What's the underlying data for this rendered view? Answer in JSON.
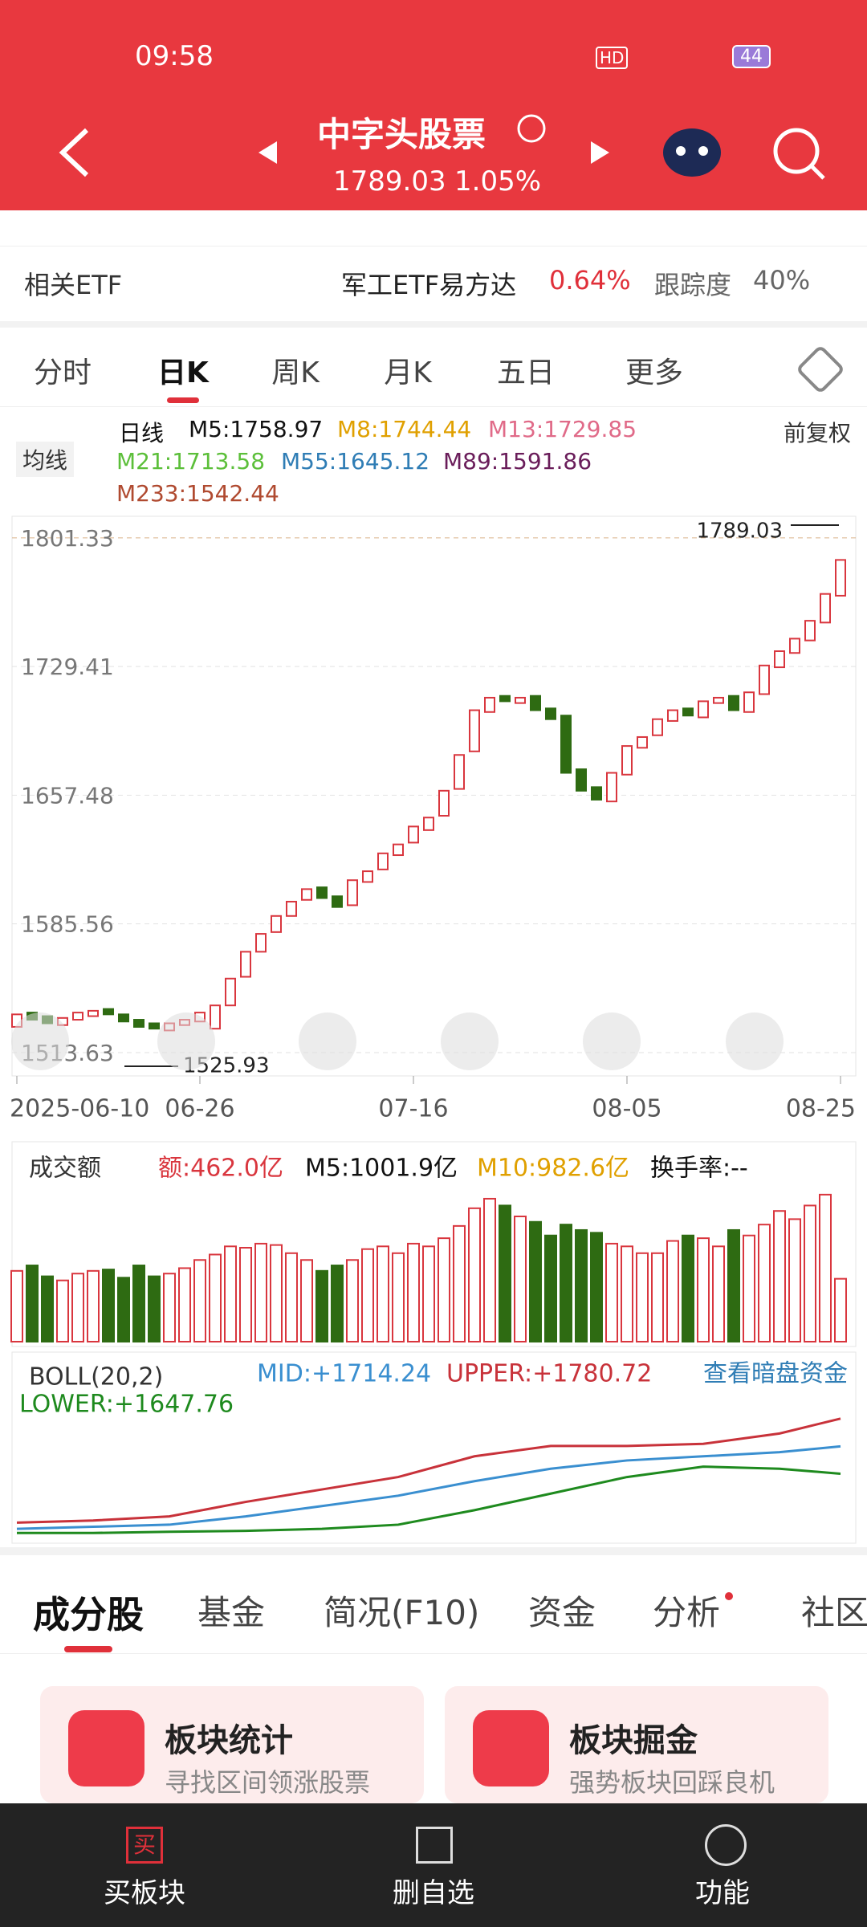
{
  "status": {
    "time": "09:58",
    "hd": "HD",
    "battery": "44"
  },
  "header": {
    "title": "中字头股票",
    "price": "1789.03",
    "change": "1.05%"
  },
  "etf": {
    "label": "相关ETF",
    "name": "军工ETF易方达",
    "change": "0.64%",
    "track_label": "跟踪度",
    "track": "40%"
  },
  "tabs": [
    "分时",
    "日K",
    "周K",
    "月K",
    "五日",
    "更多"
  ],
  "ma": {
    "selector": "均线",
    "period": "日线",
    "adjust": "前复权",
    "items": [
      {
        "text": "M5:1758.97",
        "color": "#111111"
      },
      {
        "text": "M8:1744.44",
        "color": "#e0a000"
      },
      {
        "text": "M13:1729.85",
        "color": "#e06a88"
      },
      {
        "text": "M21:1713.58",
        "color": "#5cbf3a"
      },
      {
        "text": "M55:1645.12",
        "color": "#2f7db5"
      },
      {
        "text": "M89:1591.86",
        "color": "#6a1d5a"
      },
      {
        "text": "M233:1542.44",
        "color": "#b04a30"
      }
    ]
  },
  "chart_data": [
    {
      "type": "candlestick",
      "categories": [
        "2025-06-10",
        null,
        null,
        null,
        null,
        null,
        null,
        null,
        null,
        null,
        null,
        null,
        "06-26",
        null,
        null,
        null,
        null,
        null,
        null,
        null,
        null,
        null,
        null,
        null,
        null,
        null,
        "07-16",
        null,
        null,
        null,
        null,
        null,
        null,
        null,
        null,
        null,
        null,
        null,
        null,
        null,
        "08-05",
        null,
        null,
        null,
        null,
        null,
        null,
        null,
        null,
        null,
        null,
        null,
        null,
        null,
        "08-25"
      ],
      "open": [
        1528,
        1536,
        1534,
        1529,
        1532,
        1534,
        1538,
        1535,
        1532,
        1530,
        1526,
        1529,
        1531,
        1527,
        1540,
        1556,
        1570,
        1581,
        1590,
        1599,
        1606,
        1601,
        1596,
        1609,
        1616,
        1624,
        1631,
        1638,
        1646,
        1661,
        1682,
        1704,
        1713,
        1709,
        1713,
        1706,
        1702,
        1672,
        1662,
        1654,
        1669,
        1684,
        1691,
        1699,
        1706,
        1701,
        1709,
        1713,
        1704,
        1714,
        1729,
        1737,
        1744,
        1754,
        1769
      ],
      "close": [
        1535,
        1532,
        1530,
        1533,
        1536,
        1537,
        1535,
        1531,
        1528,
        1527,
        1530,
        1532,
        1536,
        1540,
        1555,
        1570,
        1580,
        1590,
        1598,
        1605,
        1600,
        1595,
        1610,
        1615,
        1625,
        1630,
        1640,
        1645,
        1660,
        1680,
        1705,
        1712,
        1710,
        1712,
        1705,
        1700,
        1670,
        1660,
        1655,
        1670,
        1685,
        1690,
        1700,
        1705,
        1702,
        1710,
        1712,
        1705,
        1715,
        1730,
        1738,
        1745,
        1755,
        1770,
        1789
      ],
      "ylim": [
        1500.6,
        1813.4
      ],
      "yticks": [
        1801.33,
        1729.41,
        1657.48,
        1585.56,
        1513.63
      ],
      "grid": true,
      "up_color": "#d9363e",
      "down_color": "#2e6b12",
      "max_label": "1789.03",
      "min_label": "1525.93"
    },
    {
      "type": "bar",
      "label": "成交额",
      "amount": "额:462.0亿",
      "m5": "M5:1001.9亿",
      "m10": "M10:982.6亿",
      "turnover": "换手率:--",
      "values": [
        520,
        560,
        480,
        450,
        500,
        520,
        530,
        470,
        560,
        480,
        500,
        540,
        600,
        640,
        700,
        690,
        720,
        710,
        650,
        600,
        520,
        560,
        600,
        680,
        700,
        650,
        720,
        700,
        760,
        850,
        980,
        1050,
        1000,
        920,
        880,
        780,
        860,
        820,
        800,
        720,
        700,
        650,
        650,
        740,
        780,
        760,
        700,
        820,
        780,
        860,
        960,
        900,
        1000,
        1080,
        462
      ],
      "ylim": [
        0,
        1150
      ]
    },
    {
      "type": "line",
      "label": "BOLL(20,2)",
      "link": "查看暗盘资金",
      "x": [
        0,
        5,
        10,
        15,
        20,
        25,
        30,
        35,
        40,
        45,
        50,
        54
      ],
      "xlim": [
        0,
        54
      ],
      "ylim": [
        1490,
        1800
      ],
      "series": [
        {
          "name": "MID:+1714.24",
          "color": "#3a8fd0",
          "values": [
            1515,
            1520,
            1525,
            1545,
            1570,
            1595,
            1630,
            1660,
            1680,
            1690,
            1700,
            1714
          ]
        },
        {
          "name": "UPPER:+1780.72",
          "color": "#c8323a",
          "values": [
            1530,
            1535,
            1545,
            1580,
            1610,
            1640,
            1690,
            1715,
            1715,
            1720,
            1745,
            1781
          ]
        },
        {
          "name": "LOWER:+1647.76",
          "color": "#1e8a1e",
          "values": [
            1505,
            1505,
            1508,
            1510,
            1515,
            1525,
            1560,
            1600,
            1640,
            1665,
            1660,
            1648
          ]
        }
      ]
    }
  ],
  "tabs2": [
    "成分股",
    "基金",
    "简况(F10)",
    "资金",
    "分析",
    "社区"
  ],
  "cards": [
    {
      "title": "板块统计",
      "desc": "寻找区间领涨股票"
    },
    {
      "title": "板块掘金",
      "desc": "强势板块回踩良机"
    }
  ],
  "nav": {
    "icon": "买",
    "items": [
      "买板块",
      "删自选",
      "功能"
    ]
  }
}
